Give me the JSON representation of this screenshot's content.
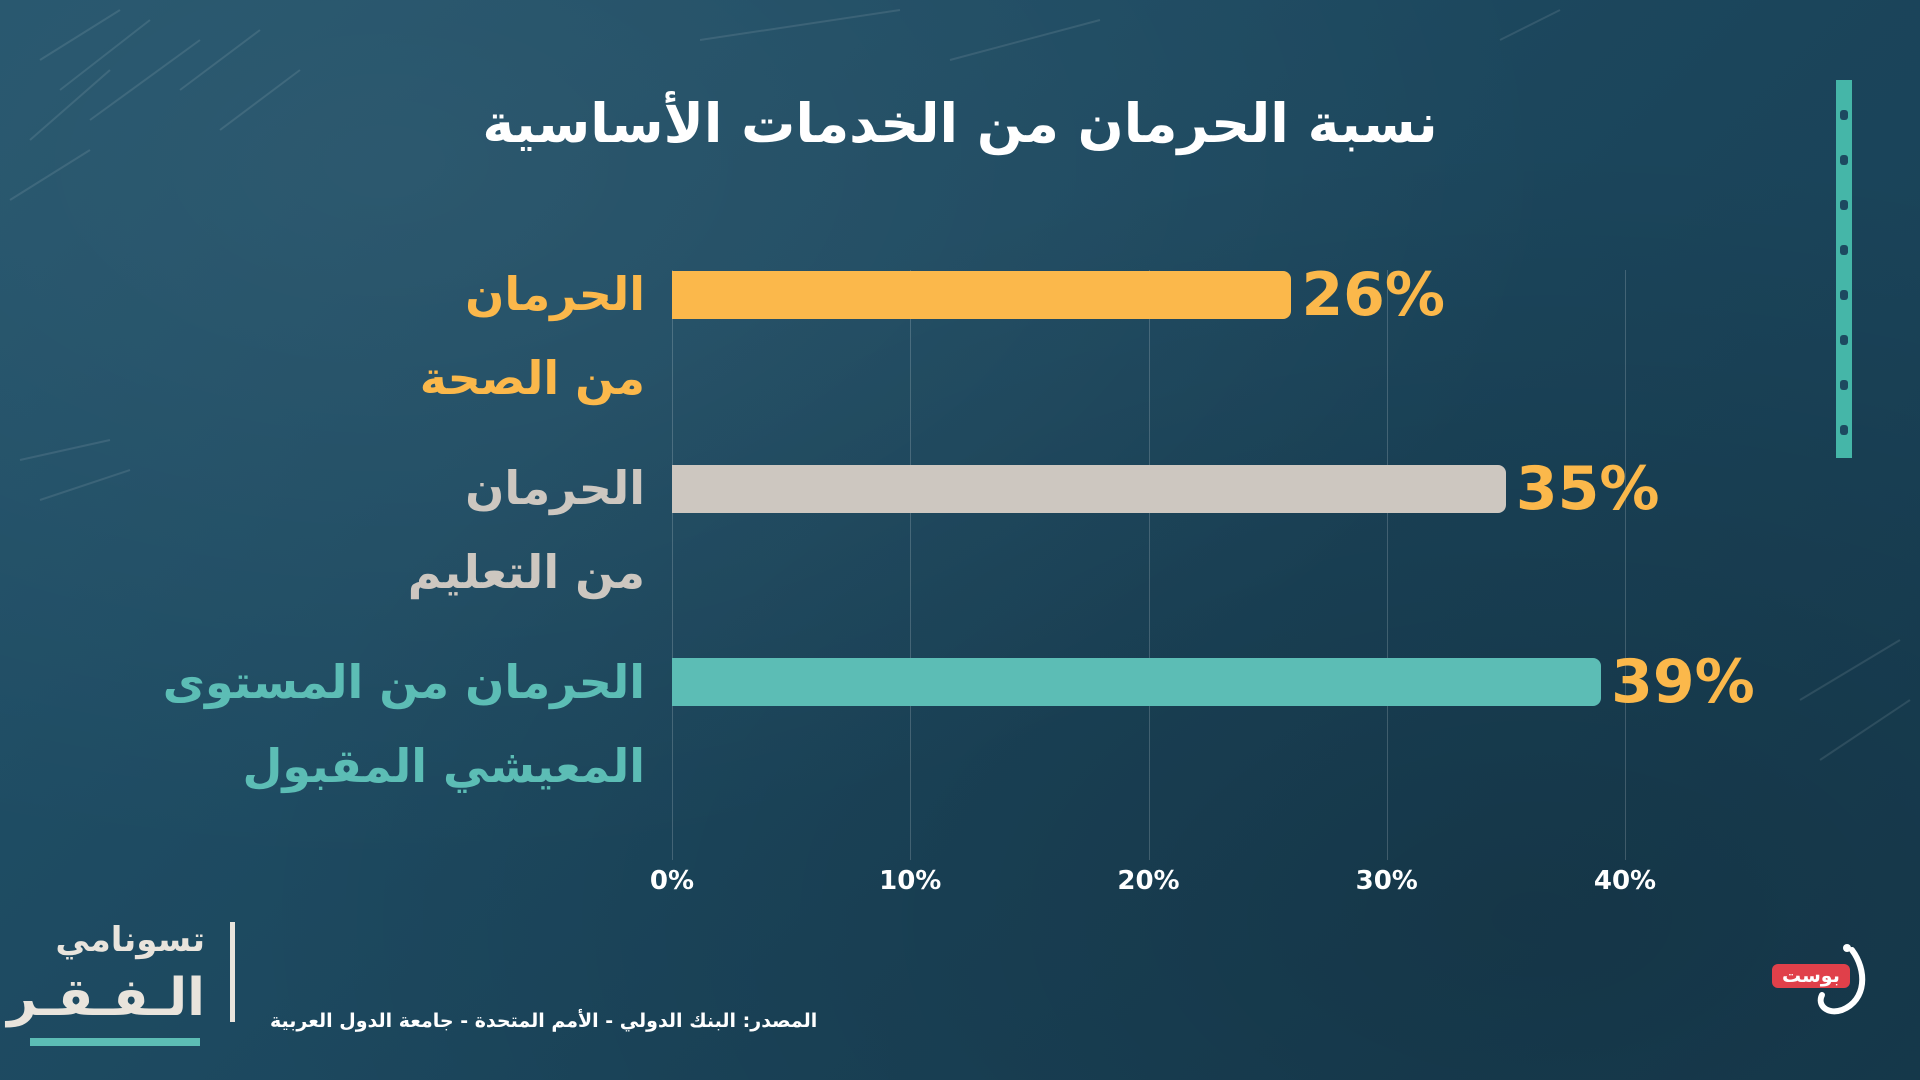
{
  "title": "نسبة الحرمان من الخدمات الأساسية",
  "source": "المصدر: البنك الدولي - الأمم المتحدة - جامعة الدول العربية",
  "logo_left": {
    "line1": "تسونامي",
    "line2": "الـفـقـر"
  },
  "logo_right": {
    "badge": "بوست"
  },
  "colors": {
    "background": "#1d4a60",
    "health": "#fbb84b",
    "education": "#cdc7c0",
    "living": "#5cbdb5",
    "value_text": "#fbb84b"
  },
  "chart_data": {
    "type": "bar",
    "orientation": "horizontal",
    "title": "نسبة الحرمان من الخدمات الأساسية",
    "categories": [
      "الحرمان من الصحة",
      "الحرمان من التعليم",
      "الحرمان من المستوى المعيشي المقبول"
    ],
    "values": [
      26,
      35,
      39
    ],
    "value_labels": [
      "26%",
      "35%",
      "39%"
    ],
    "bar_colors": [
      "#fbb84b",
      "#cdc7c0",
      "#5cbdb5"
    ],
    "label_colors": [
      "#fbb84b",
      "#cdc7c0",
      "#5cbdb5"
    ],
    "xlim": [
      0,
      40
    ],
    "xticks": [
      "0%",
      "10%",
      "20%",
      "30%",
      "40%"
    ],
    "xtick_values": [
      0,
      10,
      20,
      30,
      40
    ],
    "grid": true,
    "legend": "none"
  }
}
